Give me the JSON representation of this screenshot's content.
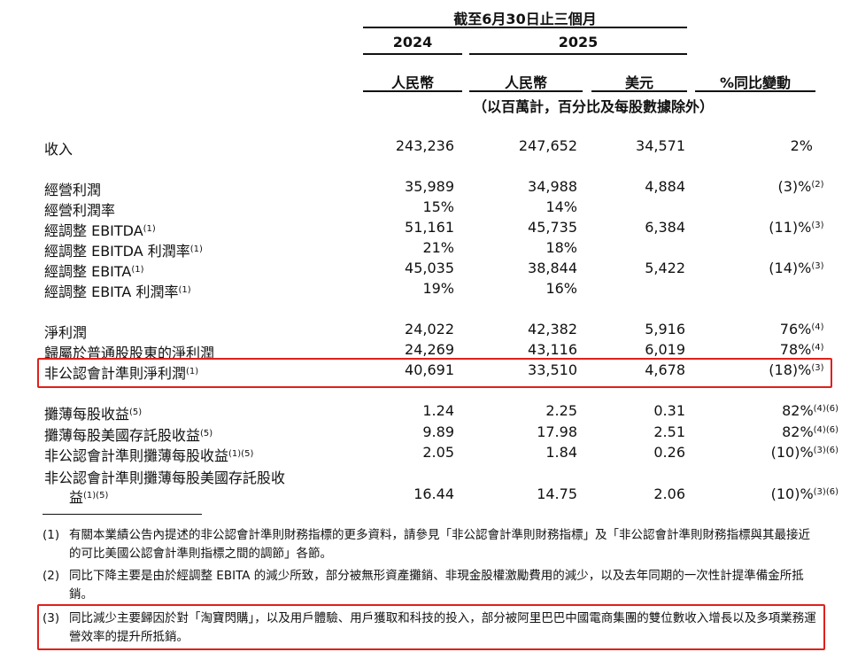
{
  "header": {
    "period": "截至6月30日止三個月",
    "year_2024": "2024",
    "year_2025": "2025",
    "currencies": [
      "人民幣",
      "人民幣",
      "美元",
      "%同比變動"
    ],
    "unit_note": "（以百萬計，百分比及每股數據除外）"
  },
  "rows": [
    {
      "label": "收入",
      "sup": "",
      "v": [
        "243,236",
        "247,652",
        "34,571",
        "2%"
      ],
      "vsup": ""
    },
    {
      "label": "經營利潤",
      "sup": "",
      "v": [
        "35,989",
        "34,988",
        "4,884",
        "(3)%"
      ],
      "vsup": "(2)"
    },
    {
      "label": "經營利潤率",
      "sup": "",
      "v": [
        "15%",
        "14%",
        "",
        ""
      ],
      "vsup": ""
    },
    {
      "label": "經調整 EBITDA",
      "sup": "(1)",
      "v": [
        "51,161",
        "45,735",
        "6,384",
        "(11)%"
      ],
      "vsup": "(3)"
    },
    {
      "label": "經調整 EBITDA 利潤率",
      "sup": "(1)",
      "v": [
        "21%",
        "18%",
        "",
        ""
      ],
      "vsup": ""
    },
    {
      "label": "經調整 EBITA",
      "sup": "(1)",
      "v": [
        "45,035",
        "38,844",
        "5,422",
        "(14)%"
      ],
      "vsup": "(3)"
    },
    {
      "label": "經調整 EBITA 利潤率",
      "sup": "(1)",
      "v": [
        "19%",
        "16%",
        "",
        ""
      ],
      "vsup": ""
    },
    {
      "label": "淨利潤",
      "sup": "",
      "v": [
        "24,022",
        "42,382",
        "5,916",
        "76%"
      ],
      "vsup": "(4)"
    },
    {
      "label": "歸屬於普通股股東的淨利潤",
      "sup": "",
      "v": [
        "24,269",
        "43,116",
        "6,019",
        "78%"
      ],
      "vsup": "(4)"
    },
    {
      "label": "非公認會計準則淨利潤",
      "sup": "(1)",
      "v": [
        "40,691",
        "33,510",
        "4,678",
        "(18)%"
      ],
      "vsup": "(3)"
    },
    {
      "label": "攤薄每股收益",
      "sup": "(5)",
      "v": [
        "1.24",
        "2.25",
        "0.31",
        "82%"
      ],
      "vsup": "(4)(6)"
    },
    {
      "label": "攤薄每股美國存託股收益",
      "sup": "(5)",
      "v": [
        "9.89",
        "17.98",
        "2.51",
        "82%"
      ],
      "vsup": "(4)(6)"
    },
    {
      "label": "非公認會計準則攤薄每股收益",
      "sup": "(1)(5)",
      "v": [
        "2.05",
        "1.84",
        "0.26",
        "(10)%"
      ],
      "vsup": "(3)(6)"
    },
    {
      "label": "非公認會計準則攤薄每股美國存託股收",
      "sup": "",
      "v": [
        "",
        "",
        "",
        ""
      ],
      "vsup": ""
    },
    {
      "label": "益",
      "sup": "(1)(5)",
      "v": [
        "16.44",
        "14.75",
        "2.06",
        "(10)%"
      ],
      "vsup": "(3)(6)"
    }
  ],
  "notes": [
    {
      "num": "(1)",
      "text": "有關本業績公告內提述的非公認會計準則財務指標的更多資料，請參見「非公認會計準則財務指標」及「非公認會計準則財務指標與其最接近的可比美國公認會計準則指標之間的調節」各節。"
    },
    {
      "num": "(2)",
      "text": "同比下降主要是由於經調整 EBITA 的減少所致，部分被無形資產攤銷、非現金股權激勵費用的減少，以及去年同期的一次性計提準備金所抵銷。"
    },
    {
      "num": "(3)",
      "text": "同比減少主要歸因於對「淘寶閃購」，以及用戶體驗、用戶獲取和科技的投入，部分被阿里巴巴中國電商集團的雙位數收入增長以及多項業務運營效率的提升所抵銷。"
    }
  ],
  "colors": {
    "highlight": "#e0201b"
  }
}
